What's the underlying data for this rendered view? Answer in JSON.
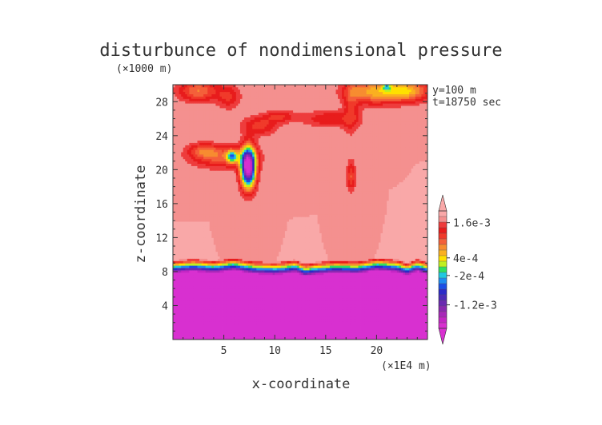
{
  "chart_data": {
    "type": "heatmap",
    "title": "disturbunce of nondimensional pressure",
    "xlabel": "x-coordinate",
    "ylabel": "z-coordinate",
    "x_unit": "(×1E4 m)",
    "y_unit": "(×1000 m)",
    "annotations": [
      "y=100  m",
      "t=18750 sec"
    ],
    "xlim": [
      0,
      25
    ],
    "ylim": [
      0,
      30
    ],
    "x_ticks": [
      5,
      10,
      15,
      20
    ],
    "y_ticks": [
      4,
      8,
      12,
      16,
      20,
      24,
      28
    ],
    "colorbar": {
      "labels": [
        "1.6e-3",
        "4e-4",
        "-2e-4",
        "-1.2e-3"
      ],
      "label_values": [
        0.0016,
        0.0004,
        -0.0002,
        -0.0012
      ],
      "range": [
        -0.002,
        0.002
      ],
      "levels": [
        {
          "value": 0.002,
          "color": "#f9a8a8"
        },
        {
          "value": 0.0018,
          "color": "#f4908f"
        },
        {
          "value": 0.0016,
          "color": "#ee3c3c"
        },
        {
          "value": 0.0014,
          "color": "#e81c1c"
        },
        {
          "value": 0.0012,
          "color": "#f03a2a"
        },
        {
          "value": 0.001,
          "color": "#f4603a"
        },
        {
          "value": 0.0008,
          "color": "#f78c30"
        },
        {
          "value": 0.0006,
          "color": "#fab020"
        },
        {
          "value": 0.0004,
          "color": "#ffe000"
        },
        {
          "value": 0.0002,
          "color": "#c0f020"
        },
        {
          "value": 0.0,
          "color": "#30e060"
        },
        {
          "value": -0.0002,
          "color": "#20c8e0"
        },
        {
          "value": -0.0004,
          "color": "#1e8cf0"
        },
        {
          "value": -0.0006,
          "color": "#1a4ee6"
        },
        {
          "value": -0.0008,
          "color": "#2a2ac8"
        },
        {
          "value": -0.001,
          "color": "#4a2ab8"
        },
        {
          "value": -0.0012,
          "color": "#6a2ab0"
        },
        {
          "value": -0.0014,
          "color": "#8a28b0"
        },
        {
          "value": -0.0016,
          "color": "#a828b8"
        },
        {
          "value": -0.0018,
          "color": "#c426c4"
        },
        {
          "value": -0.002,
          "color": "#d830d0"
        }
      ]
    },
    "field": {
      "background_value": 0.0019,
      "below_interface_value": -0.002,
      "interface_z": [
        [
          0,
          8.6
        ],
        [
          2,
          8.8
        ],
        [
          4,
          8.6
        ],
        [
          6,
          8.9
        ],
        [
          8,
          8.5
        ],
        [
          10,
          8.4
        ],
        [
          11,
          8.5
        ],
        [
          12,
          8.7
        ],
        [
          13,
          8.2
        ],
        [
          14,
          8.4
        ],
        [
          16,
          8.6
        ],
        [
          18,
          8.5
        ],
        [
          20,
          8.9
        ],
        [
          22,
          8.7
        ],
        [
          23,
          8.3
        ],
        [
          24,
          8.8
        ],
        [
          25,
          8.4
        ]
      ],
      "features": [
        {
          "x": 7.4,
          "z": 20.3,
          "sx": 0.5,
          "sz": 1.6,
          "amp": -0.0043
        },
        {
          "x": 5.8,
          "z": 21.6,
          "sx": 0.35,
          "sz": 0.5,
          "amp": -0.0017
        },
        {
          "x": 5.0,
          "z": 21.5,
          "sx": 2.2,
          "sz": 0.9,
          "amp": -0.0009
        },
        {
          "x": 3.0,
          "z": 22.3,
          "sx": 1.0,
          "sz": 0.6,
          "amp": -0.0007
        },
        {
          "x": 8.5,
          "z": 25.2,
          "sx": 1.2,
          "sz": 0.8,
          "amp": -0.0007
        },
        {
          "x": 10.5,
          "z": 26.3,
          "sx": 1.0,
          "sz": 0.5,
          "amp": -0.0006
        },
        {
          "x": 15.5,
          "z": 26.0,
          "sx": 2.0,
          "sz": 0.7,
          "amp": -0.0006
        },
        {
          "x": 17.5,
          "z": 19.3,
          "sx": 0.3,
          "sz": 1.2,
          "amp": -0.0008
        },
        {
          "x": 2.5,
          "z": 29.3,
          "sx": 1.4,
          "sz": 0.9,
          "amp": -0.001
        },
        {
          "x": 5.5,
          "z": 28.6,
          "sx": 0.8,
          "sz": 1.0,
          "amp": -0.0006
        },
        {
          "x": 19.5,
          "z": 29.2,
          "sx": 1.8,
          "sz": 1.0,
          "amp": -0.0012
        },
        {
          "x": 23.0,
          "z": 29.3,
          "sx": 1.6,
          "sz": 0.9,
          "amp": -0.0013
        },
        {
          "x": 21.0,
          "z": 29.8,
          "sx": 0.3,
          "sz": 0.3,
          "amp": -0.001
        },
        {
          "x": 17.5,
          "z": 27.5,
          "sx": 0.5,
          "sz": 2.5,
          "amp": -0.0005
        }
      ]
    }
  }
}
